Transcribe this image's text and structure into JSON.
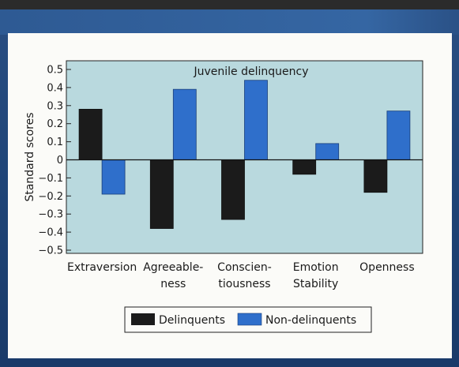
{
  "chart_data": {
    "type": "bar",
    "title": "Juvenile delinquency",
    "ylabel": "Standard scores",
    "xlabel": "",
    "ylim": [
      -0.5,
      0.5
    ],
    "yticks": [
      0.5,
      0.4,
      0.3,
      0.2,
      0.1,
      0,
      -0.1,
      -0.2,
      -0.3,
      -0.4,
      -0.5
    ],
    "ytick_labels": [
      "0.5",
      "0.4",
      "0.3",
      "0.2",
      "0.1",
      "0",
      "−0.1",
      "−0.2",
      "−0.3",
      "−0.4",
      "−0.5"
    ],
    "categories": [
      [
        "Extraversion"
      ],
      [
        "Agreeable-",
        "ness"
      ],
      [
        "Conscien-",
        "tiousness"
      ],
      [
        "Emotion",
        "Stability"
      ],
      [
        "Openness"
      ]
    ],
    "series": [
      {
        "name": "Delinquents",
        "color": "#1b1b1b",
        "values": [
          0.28,
          -0.38,
          -0.33,
          -0.08,
          -0.18
        ]
      },
      {
        "name": "Non-delinquents",
        "color": "#2f6fcb",
        "values": [
          -0.19,
          0.39,
          0.44,
          0.09,
          0.27
        ]
      }
    ],
    "grid": false,
    "legend_position": "bottom-center",
    "plot_background": "#b9d9de"
  }
}
